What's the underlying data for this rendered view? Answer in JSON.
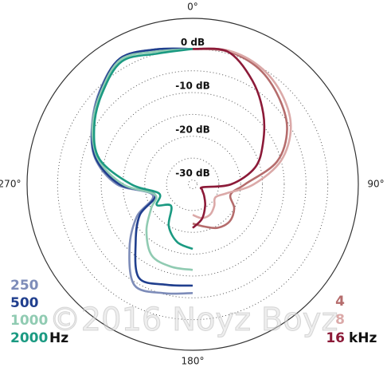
{
  "chart_data": {
    "type": "polar",
    "rlim": [
      -31,
      7
    ],
    "rgrid": [
      -30,
      -25,
      -20,
      -15,
      -10,
      -5,
      0
    ],
    "rticks": [
      {
        "value": 0,
        "label": "0 dB"
      },
      {
        "value": -10,
        "label": "-10 dB"
      },
      {
        "value": -20,
        "label": "-20 dB"
      },
      {
        "value": -30,
        "label": "-30 dB"
      }
    ],
    "thetaticks": [
      {
        "value": 0,
        "label": "0°"
      },
      {
        "value": 90,
        "label": "90°"
      },
      {
        "value": 180,
        "label": "180°"
      },
      {
        "value": 270,
        "label": "270°"
      }
    ],
    "units": [
      "Hz",
      "kHz"
    ],
    "watermark": "©2016 Noyz Boyz",
    "series": [
      {
        "name": "250",
        "color": "#7d8cb9",
        "theta": [
          180,
          195,
          210,
          225,
          240,
          255,
          270,
          285,
          300,
          315,
          330,
          345,
          360
        ],
        "values": [
          -6.1,
          -5.2,
          -4.3,
          -10.5,
          -16.2,
          -21.5,
          -13.6,
          -7.8,
          -4.3,
          -0.8,
          2.3,
          1,
          0
        ]
      },
      {
        "name": "500",
        "color": "#203f8e",
        "theta": [
          180,
          195,
          210,
          225,
          240,
          255,
          270,
          285,
          300,
          315,
          330,
          345,
          360
        ],
        "values": [
          -7.8,
          -7.2,
          -6.3,
          -12.5,
          -17,
          -22,
          -14.2,
          -8,
          -4.5,
          -1,
          2.3,
          1,
          0
        ]
      },
      {
        "name": "1000",
        "color": "#90cbb2",
        "theta": [
          180,
          195,
          210,
          225,
          240,
          255,
          270,
          285,
          300,
          315,
          330,
          345,
          360
        ],
        "values": [
          -11.4,
          -11.5,
          -12.2,
          -16,
          -20,
          -22,
          -15,
          -8.5,
          -4.5,
          -1.2,
          2,
          0.5,
          0
        ]
      },
      {
        "name": "2000",
        "color": "#1b9a82",
        "theta": [
          180,
          195,
          210,
          225,
          240,
          255,
          270,
          285,
          300,
          315,
          330,
          345,
          360
        ],
        "values": [
          -16.2,
          -17.3,
          -20,
          -24,
          -21.5,
          -23,
          -16.9,
          -8.9,
          -4.9,
          -1.6,
          1.5,
          0,
          0
        ]
      },
      {
        "name": "4",
        "color": "#b56c6c",
        "theta": [
          0,
          15,
          30,
          45,
          60,
          75,
          90,
          105,
          120,
          135,
          150,
          165,
          180
        ],
        "values": [
          0,
          0.5,
          -0.5,
          -3,
          -6,
          -11,
          -19,
          -22,
          -20,
          -19,
          -19.5,
          -21,
          -22
        ]
      },
      {
        "name": "8",
        "color": "#dba9a8",
        "theta": [
          0,
          15,
          30,
          45,
          60,
          75,
          90,
          105,
          120,
          135,
          150,
          165,
          180
        ],
        "values": [
          0,
          0.7,
          0,
          -2,
          -5,
          -10,
          -17,
          -23,
          -25,
          -24,
          -23,
          -23,
          -24
        ]
      },
      {
        "name": "16",
        "color": "#8c1a38",
        "theta": [
          0,
          15,
          30,
          45,
          60,
          75,
          90,
          105,
          120,
          135,
          150,
          165,
          180
        ],
        "values": [
          0,
          0.4,
          -3.6,
          -8.1,
          -12.4,
          -16.2,
          -22.2,
          -28.5,
          -28.5,
          -27.3,
          -25.3,
          -22.8,
          -21
        ]
      }
    ]
  }
}
